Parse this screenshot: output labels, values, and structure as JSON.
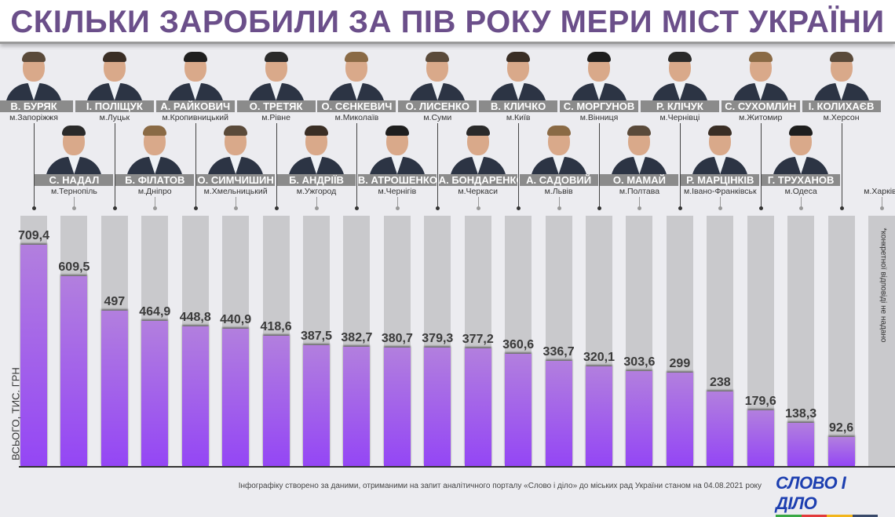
{
  "title": "СКІЛЬКИ ЗАРОБИЛИ ЗА ПІВ РОКУ МЕРИ МІСТ УКРАЇНИ",
  "footer": "Інфографіку створено за даними, отриманими на запит аналітичного порталу «Слово і діло» до міських рад України станом на 04.08.2021 року",
  "logo": "СЛОВО І ДІЛО",
  "colors": {
    "title": "#6b4f8a",
    "bar": "#9446f5",
    "bar_bg": "#c9c9cc",
    "label_bg": "#8b8b8b"
  },
  "chart_data": {
    "type": "bar",
    "ylabel": "ВСЬОГО, ТИС. ГРН",
    "note": "*конкретної відповіді не надано",
    "ylim": [
      0,
      800
    ],
    "grid": false,
    "categories": [
      {
        "name": "В. БУРЯК",
        "city": "м.Запоріжжя"
      },
      {
        "name": "С. НАДАЛ",
        "city": "м.Тернопіль"
      },
      {
        "name": "І. ПОЛІЩУК",
        "city": "м.Луцьк"
      },
      {
        "name": "Б. ФІЛАТОВ",
        "city": "м.Дніпро"
      },
      {
        "name": "А. РАЙКОВИЧ",
        "city": "м.Кропивницький"
      },
      {
        "name": "О. СИМЧИШИН",
        "city": "м.Хмельницький"
      },
      {
        "name": "О. ТРЕТЯК",
        "city": "м.Рівне"
      },
      {
        "name": "Б. АНДРІЇВ",
        "city": "м.Ужгород"
      },
      {
        "name": "О. СЄНКЕВИЧ",
        "city": "м.Миколаїв"
      },
      {
        "name": "В. АТРОШЕНКО",
        "city": "м.Чернігів"
      },
      {
        "name": "О. ЛИСЕНКО",
        "city": "м.Суми"
      },
      {
        "name": "А. БОНДАРЕНКО",
        "city": "м.Черкаси"
      },
      {
        "name": "В. КЛИЧКО",
        "city": "м.Київ"
      },
      {
        "name": "А. САДОВИЙ",
        "city": "м.Львів"
      },
      {
        "name": "С. МОРГУНОВ",
        "city": "м.Вінниця"
      },
      {
        "name": "О. МАМАЙ",
        "city": "м.Полтава"
      },
      {
        "name": "Р. КЛІЧУК",
        "city": "м.Чернівці"
      },
      {
        "name": "Р. МАРЦІНКІВ",
        "city": "м.Івано-Франківськ"
      },
      {
        "name": "С. СУХОМЛИН",
        "city": "м.Житомир"
      },
      {
        "name": "Г. ТРУХАНОВ",
        "city": "м.Одеса"
      },
      {
        "name": "І. КОЛИХАЄВ",
        "city": "м.Херсон"
      },
      {
        "name": "",
        "city": "м.Харків*"
      }
    ],
    "values": [
      709.4,
      609.5,
      497,
      464.9,
      448.8,
      440.9,
      418.6,
      387.5,
      382.7,
      380.7,
      379.3,
      377.2,
      360.6,
      336.7,
      320.1,
      303.6,
      299,
      238,
      179.6,
      138.3,
      92.6,
      null
    ],
    "value_labels": [
      "709,4",
      "609,5",
      "497",
      "464,9",
      "448,8",
      "440,9",
      "418,6",
      "387,5",
      "382,7",
      "380,7",
      "379,3",
      "377,2",
      "360,6",
      "336,7",
      "320,1",
      "303,6",
      "299",
      "238",
      "179,6",
      "138,3",
      "92,6",
      ""
    ]
  }
}
